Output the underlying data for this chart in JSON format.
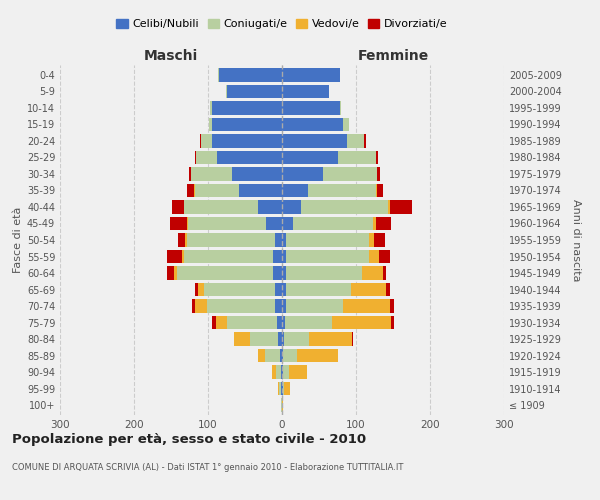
{
  "age_groups": [
    "100+",
    "95-99",
    "90-94",
    "85-89",
    "80-84",
    "75-79",
    "70-74",
    "65-69",
    "60-64",
    "55-59",
    "50-54",
    "45-49",
    "40-44",
    "35-39",
    "30-34",
    "25-29",
    "20-24",
    "15-19",
    "10-14",
    "5-9",
    "0-4"
  ],
  "birth_years": [
    "≤ 1909",
    "1910-1914",
    "1915-1919",
    "1920-1924",
    "1925-1929",
    "1930-1934",
    "1935-1939",
    "1940-1944",
    "1945-1949",
    "1950-1954",
    "1955-1959",
    "1960-1964",
    "1965-1969",
    "1970-1974",
    "1975-1979",
    "1980-1984",
    "1985-1989",
    "1990-1994",
    "1995-1999",
    "2000-2004",
    "2005-2009"
  ],
  "male_celibi": [
    0,
    1,
    1,
    3,
    5,
    7,
    10,
    10,
    12,
    12,
    9,
    22,
    32,
    58,
    68,
    88,
    95,
    95,
    95,
    75,
    85
  ],
  "male_coniugati": [
    1,
    3,
    7,
    20,
    38,
    68,
    92,
    95,
    130,
    120,
    120,
    105,
    100,
    60,
    55,
    28,
    14,
    4,
    2,
    1,
    1
  ],
  "male_vedovi": [
    0,
    2,
    5,
    10,
    22,
    14,
    15,
    8,
    4,
    3,
    2,
    2,
    1,
    1,
    0,
    0,
    0,
    0,
    0,
    0,
    0
  ],
  "male_divorziati": [
    0,
    0,
    0,
    0,
    0,
    5,
    5,
    5,
    10,
    20,
    10,
    22,
    15,
    10,
    3,
    2,
    2,
    0,
    0,
    0,
    0
  ],
  "female_nubili": [
    0,
    1,
    1,
    2,
    3,
    4,
    5,
    5,
    5,
    5,
    5,
    15,
    25,
    35,
    55,
    75,
    88,
    82,
    78,
    63,
    78
  ],
  "female_coniugate": [
    0,
    2,
    8,
    18,
    33,
    63,
    78,
    88,
    103,
    113,
    112,
    108,
    118,
    92,
    73,
    52,
    23,
    8,
    2,
    1,
    0
  ],
  "female_vedove": [
    2,
    8,
    25,
    55,
    58,
    80,
    63,
    48,
    28,
    13,
    7,
    4,
    3,
    2,
    0,
    0,
    0,
    0,
    0,
    0,
    0
  ],
  "female_divorziate": [
    0,
    0,
    0,
    0,
    2,
    5,
    5,
    5,
    5,
    15,
    15,
    20,
    30,
    8,
    5,
    3,
    2,
    0,
    0,
    0,
    0
  ],
  "color_celibi": "#4472c4",
  "color_coniugati": "#b8cfa0",
  "color_vedovi": "#f0b030",
  "color_divorziati": "#c00000",
  "xlim": 300,
  "title": "Popolazione per età, sesso e stato civile - 2010",
  "subtitle": "COMUNE DI ARQUATA SCRIVIA (AL) - Dati ISTAT 1° gennaio 2010 - Elaborazione TUTTITALIA.IT",
  "ylabel_left": "Fasce di età",
  "ylabel_right": "Anni di nascita",
  "header_left": "Maschi",
  "header_right": "Femmine",
  "legend_labels": [
    "Celibi/Nubili",
    "Coniugati/e",
    "Vedovi/e",
    "Divorziati/e"
  ],
  "bg_color": "#f0f0f0"
}
